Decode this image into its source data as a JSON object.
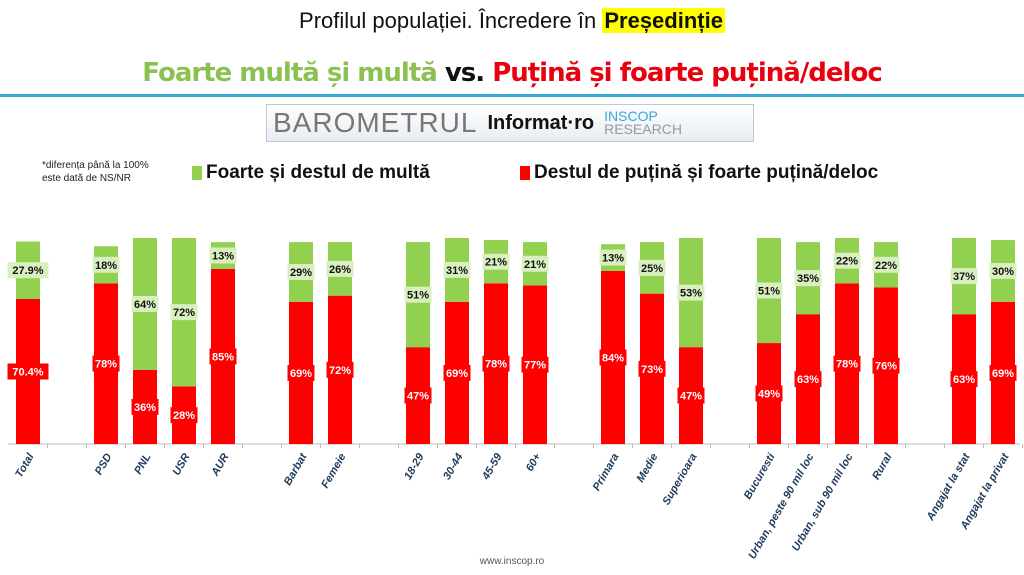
{
  "title": {
    "prefix": "Profilul populației. Încredere în ",
    "highlight": "Președinție"
  },
  "subtitle": {
    "green": "Foarte multă și multă",
    "vs": " vs. ",
    "red": "Puțină și foarte puțină/deloc"
  },
  "logo": {
    "barometrul": "BAROMETRUL",
    "informat": "Informat·ro",
    "inscop1": "INSCOP",
    "inscop2": "RESEARCH"
  },
  "note": [
    "*diferența până la 100%",
    "este dată de NS/NR"
  ],
  "footer": "www.inscop.ro",
  "chart_data": {
    "type": "stacked-bar",
    "legend_position": "top",
    "colors": {
      "green": "#92d050",
      "red": "#ff0000"
    },
    "categories": [
      "Total",
      "",
      "PSD",
      "PNL",
      "USR",
      "AUR",
      "",
      "Barbat",
      "Femeie",
      "",
      "18-29",
      "30-44",
      "45-59",
      "60+",
      "",
      "Primara",
      "Medie",
      "Superioara",
      "",
      "Bucuresti",
      "Urban, peste 90 mil loc",
      "Urban, sub 90 mil loc",
      "Rural",
      "",
      "Angajat la stat",
      "Angajat la privat"
    ],
    "series": [
      {
        "name": "Destul de puțină și foarte puțină/deloc",
        "values": [
          70.4,
          null,
          78,
          36,
          28,
          85,
          null,
          69,
          72,
          null,
          47,
          69,
          78,
          77,
          null,
          84,
          73,
          47,
          null,
          49,
          63,
          78,
          76,
          null,
          63,
          69
        ],
        "labels": [
          "70.4%",
          "",
          "78%",
          "36%",
          "28%",
          "85%",
          "",
          "69%",
          "72%",
          "",
          "47%",
          "69%",
          "78%",
          "77%",
          "",
          "84%",
          "73%",
          "47%",
          "",
          "49%",
          "63%",
          "78%",
          "76%",
          "",
          "63%",
          "69%"
        ]
      },
      {
        "name": "Foarte și destul de multă",
        "values": [
          27.9,
          null,
          18,
          64,
          72,
          13,
          null,
          29,
          26,
          null,
          51,
          31,
          21,
          21,
          null,
          13,
          25,
          53,
          null,
          51,
          35,
          22,
          22,
          null,
          37,
          30
        ],
        "labels": [
          "27.9%",
          "",
          "18%",
          "64%",
          "72%",
          "13%",
          "",
          "29%",
          "26%",
          "",
          "51%",
          "31%",
          "21%",
          "21%",
          "",
          "13%",
          "25%",
          "53%",
          "",
          "51%",
          "35%",
          "22%",
          "22%",
          "",
          "37%",
          "30%"
        ]
      }
    ],
    "ylim": [
      0,
      100
    ],
    "grid": false
  }
}
